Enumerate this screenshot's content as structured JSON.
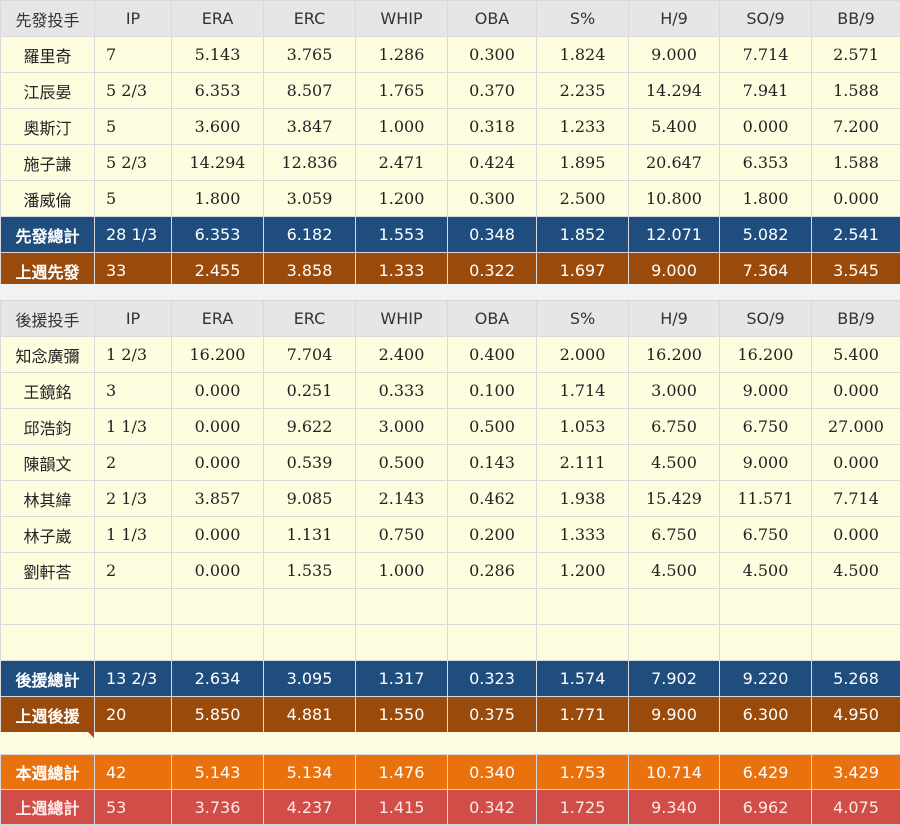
{
  "starters": {
    "header": [
      "先發投手",
      "IP",
      "ERA",
      "ERC",
      "WHIP",
      "OBA",
      "S%",
      "H/9",
      "SO/9",
      "BB/9"
    ],
    "rows": [
      [
        "羅里奇",
        "7",
        "5.143",
        "3.765",
        "1.286",
        "0.300",
        "1.824",
        "9.000",
        "7.714",
        "2.571"
      ],
      [
        "江辰晏",
        "5 2/3",
        "6.353",
        "8.507",
        "1.765",
        "0.370",
        "2.235",
        "14.294",
        "7.941",
        "1.588"
      ],
      [
        "奧斯汀",
        "5",
        "3.600",
        "3.847",
        "1.000",
        "0.318",
        "1.233",
        "5.400",
        "0.000",
        "7.200"
      ],
      [
        "施子謙",
        "5 2/3",
        "14.294",
        "12.836",
        "2.471",
        "0.424",
        "1.895",
        "20.647",
        "6.353",
        "1.588"
      ],
      [
        "潘威倫",
        "5",
        "1.800",
        "3.059",
        "1.200",
        "0.300",
        "2.500",
        "10.800",
        "1.800",
        "0.000"
      ]
    ],
    "total": [
      "先發總計",
      "28 1/3",
      "6.353",
      "6.182",
      "1.553",
      "0.348",
      "1.852",
      "12.071",
      "5.082",
      "2.541"
    ],
    "last_week": [
      "上週先發",
      "33",
      "2.455",
      "3.858",
      "1.333",
      "0.322",
      "1.697",
      "9.000",
      "7.364",
      "3.545"
    ]
  },
  "relievers": {
    "header": [
      "後援投手",
      "IP",
      "ERA",
      "ERC",
      "WHIP",
      "OBA",
      "S%",
      "H/9",
      "SO/9",
      "BB/9"
    ],
    "rows": [
      [
        "知念廣彌",
        "1 2/3",
        "16.200",
        "7.704",
        "2.400",
        "0.400",
        "2.000",
        "16.200",
        "16.200",
        "5.400"
      ],
      [
        "王鏡銘",
        "3",
        "0.000",
        "0.251",
        "0.333",
        "0.100",
        "1.714",
        "3.000",
        "9.000",
        "0.000"
      ],
      [
        "邱浩鈞",
        "1 1/3",
        "0.000",
        "9.622",
        "3.000",
        "0.500",
        "1.053",
        "6.750",
        "6.750",
        "27.000"
      ],
      [
        "陳韻文",
        "2",
        "0.000",
        "0.539",
        "0.500",
        "0.143",
        "2.111",
        "4.500",
        "9.000",
        "0.000"
      ],
      [
        "林其緯",
        "2 1/3",
        "3.857",
        "9.085",
        "2.143",
        "0.462",
        "1.938",
        "15.429",
        "11.571",
        "7.714"
      ],
      [
        "林子崴",
        "1 1/3",
        "0.000",
        "1.131",
        "0.750",
        "0.200",
        "1.333",
        "6.750",
        "6.750",
        "0.000"
      ],
      [
        "劉軒荅",
        "2",
        "0.000",
        "1.535",
        "1.000",
        "0.286",
        "1.200",
        "4.500",
        "4.500",
        "4.500"
      ]
    ],
    "total": [
      "後援總計",
      "13 2/3",
      "2.634",
      "3.095",
      "1.317",
      "0.323",
      "1.574",
      "7.902",
      "9.220",
      "5.268"
    ],
    "last_week": [
      "上週後援",
      "20",
      "5.850",
      "4.881",
      "1.550",
      "0.375",
      "1.771",
      "9.900",
      "6.300",
      "4.950"
    ]
  },
  "grand_total": {
    "this_week": [
      "本週總計",
      "42",
      "5.143",
      "5.134",
      "1.476",
      "0.340",
      "1.753",
      "10.714",
      "6.429",
      "3.429"
    ],
    "last_week": [
      "上週總計",
      "53",
      "3.736",
      "4.237",
      "1.415",
      "0.342",
      "1.725",
      "9.340",
      "6.962",
      "4.075"
    ]
  },
  "colors": {
    "header_bg": "#e6e6e6",
    "row_bg": "#fefde0",
    "total_blue": "#1f4e7e",
    "last_week_brown": "#9a4a0b",
    "this_week_orange": "#e9720f",
    "last_total_red": "#d04d48"
  }
}
